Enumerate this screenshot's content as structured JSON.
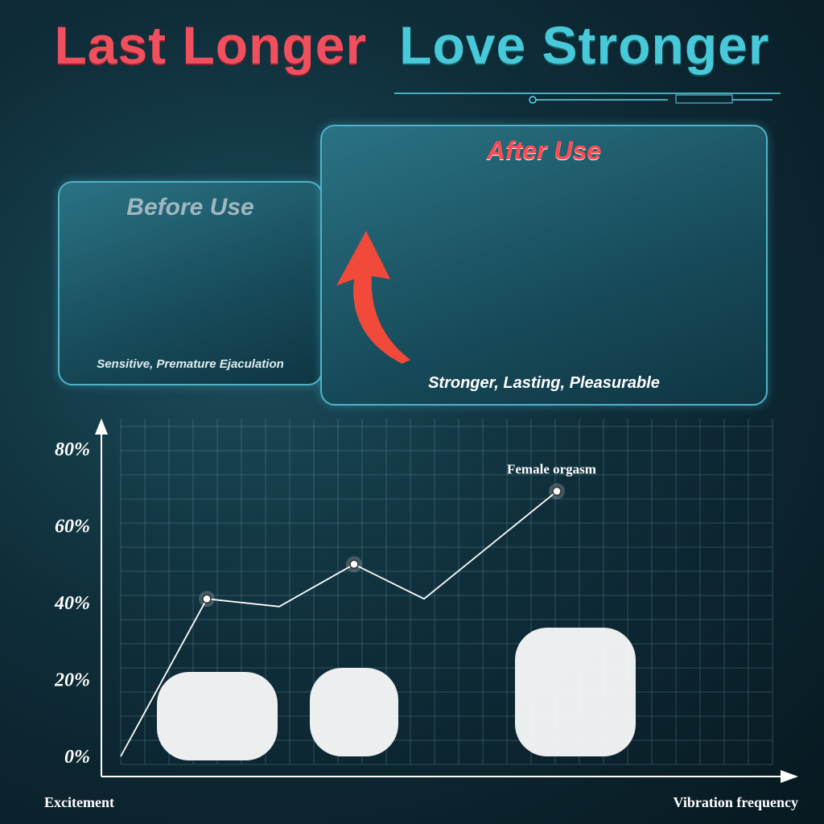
{
  "header": {
    "title_part1": "Last Longer",
    "title_part2": "Love Stronger"
  },
  "before_panel": {
    "heading": "Before Use",
    "caption": "Sensitive, Premature Ejaculation"
  },
  "after_panel": {
    "heading": "After Use",
    "caption": "Stronger, Lasting, Pleasurable"
  },
  "colors": {
    "title_red": "#f0505e",
    "title_cyan": "#47c9d9",
    "panel_border": "#4fb2c8"
  },
  "chart_data": {
    "type": "line",
    "x": [
      0,
      1,
      2,
      3,
      4,
      5
    ],
    "values": [
      0,
      41,
      39,
      50,
      41,
      69
    ],
    "xlabel": "Vibration frequency",
    "ylabel": "Excitement",
    "yticks": [
      "0%",
      "20%",
      "40%",
      "60%",
      "80%"
    ],
    "ylim": [
      0,
      80
    ],
    "grid": true,
    "annotations": [
      {
        "point": 5,
        "text": "Female orgasm"
      }
    ]
  }
}
